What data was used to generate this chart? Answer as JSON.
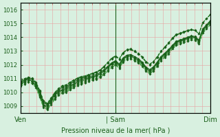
{
  "bg_color": "#d8f0e0",
  "grid_color_v": "#e8a0a0",
  "grid_color_h": "#e8a0a0",
  "line_color_dark": "#1a5f1a",
  "line_color_mid": "#2a8f2a",
  "ylim": [
    1008.5,
    1016.5
  ],
  "yticks": [
    1009,
    1010,
    1011,
    1012,
    1013,
    1014,
    1015,
    1016
  ],
  "ytick_top": 1016,
  "xtick_labels": [
    "Ven",
    "| Sam",
    "Dim"
  ],
  "xtick_positions": [
    0,
    48,
    96
  ],
  "xlabel": "Pression niveau de la mer( hPa )",
  "total_hours": 96,
  "series": [
    {
      "y": [
        1010.6,
        1010.8,
        1011.0,
        1010.8,
        1010.5,
        1009.9,
        1009.1,
        1009.0,
        1009.4,
        1009.8,
        1010.1,
        1010.2,
        1010.3,
        1010.5,
        1010.6,
        1010.8,
        1010.9,
        1011.0,
        1011.05,
        1011.1,
        1011.2,
        1011.35,
        1011.55,
        1011.8,
        1012.05,
        1012.2,
        1011.95,
        1012.4,
        1012.6,
        1012.65,
        1012.5,
        1012.35,
        1012.1,
        1011.75,
        1011.55,
        1011.75,
        1012.1,
        1012.5,
        1012.75,
        1013.0,
        1013.3,
        1013.6,
        1013.7,
        1013.8,
        1013.9,
        1014.0,
        1013.95,
        1013.7,
        1014.5,
        1014.8,
        1015.1
      ],
      "color": "#1a5f1a",
      "lw": 0.9,
      "ls": "-",
      "marker": true
    },
    {
      "y": [
        1010.7,
        1010.9,
        1011.05,
        1010.95,
        1010.65,
        1010.05,
        1009.25,
        1009.1,
        1009.5,
        1009.9,
        1010.2,
        1010.35,
        1010.4,
        1010.6,
        1010.75,
        1010.9,
        1011.0,
        1011.1,
        1011.15,
        1011.2,
        1011.3,
        1011.45,
        1011.65,
        1011.9,
        1012.15,
        1012.3,
        1012.05,
        1012.5,
        1012.7,
        1012.75,
        1012.6,
        1012.45,
        1012.2,
        1011.85,
        1011.65,
        1011.85,
        1012.2,
        1012.6,
        1012.85,
        1013.1,
        1013.4,
        1013.7,
        1013.8,
        1013.9,
        1014.0,
        1014.1,
        1014.05,
        1013.8,
        1014.6,
        1014.9,
        1015.2
      ],
      "color": "#1a5f1a",
      "lw": 0.9,
      "ls": "-",
      "marker": true
    },
    {
      "y": [
        1010.8,
        1011.0,
        1011.1,
        1011.05,
        1010.75,
        1010.15,
        1009.4,
        1009.2,
        1009.6,
        1010.0,
        1010.3,
        1010.5,
        1010.55,
        1010.75,
        1010.9,
        1011.05,
        1011.15,
        1011.2,
        1011.3,
        1011.4,
        1011.5,
        1011.65,
        1011.9,
        1012.2,
        1012.5,
        1012.65,
        1012.45,
        1012.9,
        1013.1,
        1013.15,
        1013.0,
        1012.85,
        1012.6,
        1012.25,
        1012.05,
        1012.25,
        1012.6,
        1013.0,
        1013.3,
        1013.6,
        1013.95,
        1014.2,
        1014.3,
        1014.4,
        1014.5,
        1014.55,
        1014.5,
        1014.25,
        1015.05,
        1015.35,
        1015.65
      ],
      "color": "#1a6f1a",
      "lw": 0.8,
      "ls": "--",
      "marker": true
    },
    {
      "y": [
        1010.75,
        1010.95,
        1011.1,
        1011.0,
        1010.7,
        1010.1,
        1009.35,
        1009.15,
        1009.55,
        1009.95,
        1010.25,
        1010.45,
        1010.5,
        1010.7,
        1010.85,
        1011.0,
        1011.1,
        1011.15,
        1011.25,
        1011.35,
        1011.45,
        1011.6,
        1011.85,
        1012.15,
        1012.45,
        1012.6,
        1012.4,
        1012.85,
        1013.05,
        1013.1,
        1012.95,
        1012.8,
        1012.55,
        1012.2,
        1012.0,
        1012.2,
        1012.55,
        1012.95,
        1013.25,
        1013.55,
        1013.9,
        1014.15,
        1014.25,
        1014.35,
        1014.45,
        1014.55,
        1014.5,
        1014.25,
        1015.05,
        1015.35,
        1015.65
      ],
      "color": "#1a6f1a",
      "lw": 0.8,
      "ls": "--",
      "marker": true
    },
    {
      "y": [
        1010.55,
        1010.75,
        1010.9,
        1010.8,
        1010.5,
        1009.85,
        1009.05,
        1008.9,
        1009.3,
        1009.7,
        1010.0,
        1010.15,
        1010.2,
        1010.4,
        1010.55,
        1010.7,
        1010.8,
        1010.9,
        1011.0,
        1011.1,
        1011.2,
        1011.35,
        1011.6,
        1011.85,
        1012.1,
        1012.25,
        1012.0,
        1012.45,
        1012.65,
        1012.7,
        1012.55,
        1012.4,
        1012.15,
        1011.8,
        1011.6,
        1011.8,
        1012.15,
        1012.55,
        1012.8,
        1013.05,
        1013.4,
        1013.65,
        1013.75,
        1013.85,
        1013.95,
        1014.05,
        1014.0,
        1013.75,
        1014.55,
        1014.85,
        1015.15
      ],
      "color": "#1a6f1a",
      "lw": 0.8,
      "ls": "--",
      "marker": true
    },
    {
      "y": [
        1010.55,
        1010.7,
        1010.85,
        1010.75,
        1010.45,
        1009.75,
        1009.0,
        1008.85,
        1009.2,
        1009.6,
        1009.9,
        1010.05,
        1010.1,
        1010.3,
        1010.45,
        1010.6,
        1010.7,
        1010.8,
        1010.9,
        1011.0,
        1011.05,
        1011.2,
        1011.4,
        1011.65,
        1011.9,
        1012.1,
        1011.85,
        1012.3,
        1012.5,
        1012.55,
        1012.4,
        1012.25,
        1012.0,
        1011.65,
        1011.45,
        1011.65,
        1012.0,
        1012.4,
        1012.65,
        1012.9,
        1013.25,
        1013.5,
        1013.6,
        1013.7,
        1013.8,
        1013.9,
        1013.85,
        1013.6,
        1014.4,
        1014.7,
        1015.0
      ],
      "color": "#2a8f2a",
      "lw": 0.75,
      "ls": "--",
      "marker": true
    },
    {
      "y": [
        1010.45,
        1010.6,
        1010.75,
        1010.65,
        1010.35,
        1009.65,
        1008.9,
        1008.75,
        1009.1,
        1009.5,
        1009.8,
        1009.95,
        1010.0,
        1010.2,
        1010.35,
        1010.5,
        1010.6,
        1010.7,
        1010.8,
        1010.9,
        1010.95,
        1011.1,
        1011.3,
        1011.55,
        1011.8,
        1012.0,
        1011.75,
        1012.2,
        1012.4,
        1012.45,
        1012.3,
        1012.15,
        1011.9,
        1011.55,
        1011.35,
        1011.55,
        1011.9,
        1012.3,
        1012.55,
        1012.8,
        1013.15,
        1013.4,
        1013.5,
        1013.6,
        1013.7,
        1013.8,
        1013.75,
        1013.5,
        1014.3,
        1014.6,
        1014.9
      ],
      "color": "#2a8f2a",
      "lw": 0.75,
      "ls": "--",
      "marker": true
    }
  ],
  "vline_color": "#1a5f1a",
  "vline_lw": 0.8,
  "vlines": [
    48,
    96
  ],
  "marker_symbol": "D",
  "marker_size": 2.0,
  "marker_color": "#1a5f1a",
  "tick_color": "#c06060",
  "ytick_fontsize": 6,
  "xtick_fontsize": 7,
  "label_color": "#1a5f1a"
}
